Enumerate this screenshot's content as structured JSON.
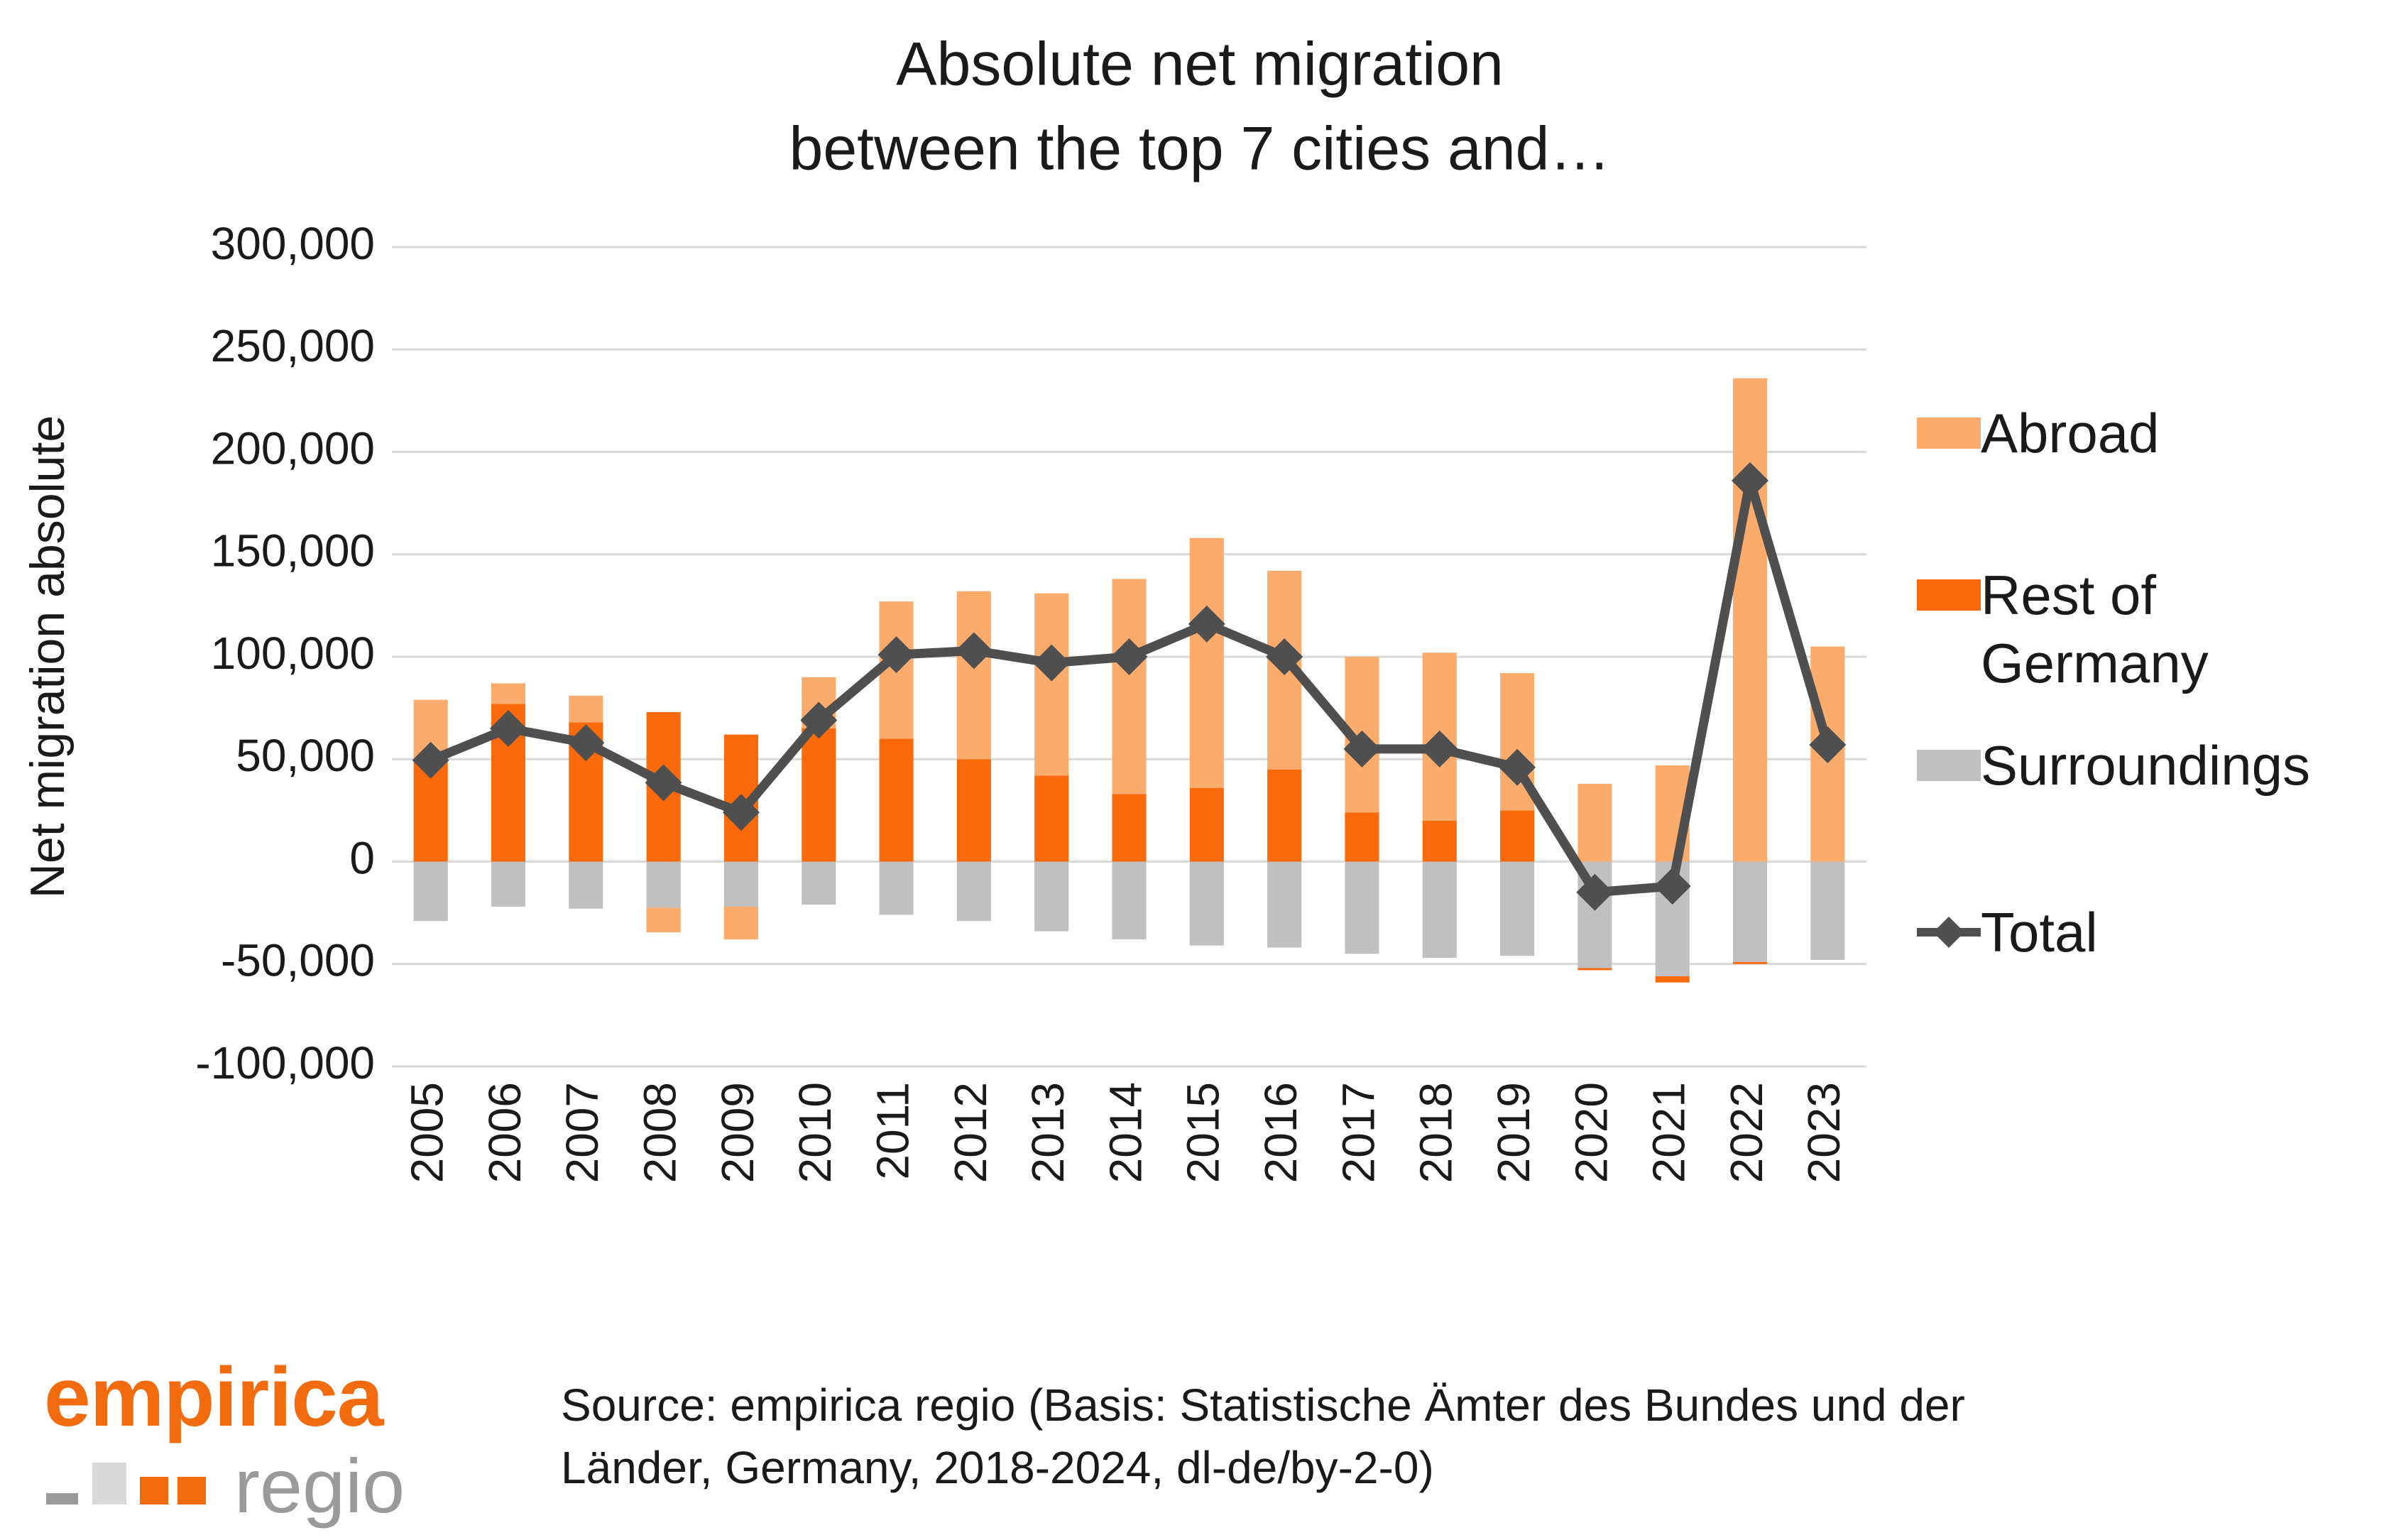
{
  "chart_data": {
    "type": "bar",
    "stacked": true,
    "title": [
      "Absolute net migration",
      "between the top 7 cities and…"
    ],
    "y_label": "Net migration absolute",
    "categories": [
      "2005",
      "2006",
      "2007",
      "2008",
      "2009",
      "2010",
      "2011",
      "2012",
      "2013",
      "2014",
      "2015",
      "2016",
      "2017",
      "2018",
      "2019",
      "2020",
      "2021",
      "2022",
      "2023"
    ],
    "series": [
      {
        "name": "Abroad",
        "color": "#fbac6c",
        "values": [
          29000,
          10000,
          13000,
          -12000,
          -16000,
          25000,
          67000,
          82000,
          89000,
          105000,
          122000,
          97000,
          76000,
          82000,
          67000,
          38000,
          47000,
          236000,
          105000
        ]
      },
      {
        "name": "Rest of Germany",
        "color": "#fa690a",
        "values": [
          50000,
          77000,
          68000,
          73000,
          62000,
          65000,
          60000,
          50000,
          42000,
          33000,
          36000,
          45000,
          24000,
          20000,
          25000,
          -1000,
          -3000,
          -1000,
          0
        ]
      },
      {
        "name": "Surroundings",
        "color": "#c0c0c0",
        "values": [
          -29000,
          -22000,
          -23000,
          -22500,
          -22000,
          -21000,
          -26000,
          -29000,
          -34000,
          -38000,
          -41000,
          -42000,
          -45000,
          -47000,
          -46000,
          -52000,
          -56000,
          -49000,
          -48000
        ]
      },
      {
        "name": "Total",
        "type": "line",
        "color": "#4f4f4f",
        "values": [
          49500,
          65000,
          58000,
          38500,
          24000,
          69000,
          101000,
          103000,
          97000,
          100000,
          116000,
          100000,
          55000,
          55000,
          46000,
          -15000,
          -12000,
          186000,
          57000
        ]
      }
    ],
    "ylim": [
      -100000,
      300000
    ],
    "yticks": [
      {
        "value": -100000,
        "label": "-100,000"
      },
      {
        "value": -50000,
        "label": "-50,000"
      },
      0,
      {
        "value": 50000,
        "label": "50,000"
      },
      {
        "value": 100000,
        "label": "100,000"
      },
      {
        "value": 150000,
        "label": "150,000"
      },
      {
        "value": 200000,
        "label": "200,000"
      },
      {
        "value": 250000,
        "label": "250,000"
      },
      {
        "value": 300000,
        "label": "300,000"
      }
    ],
    "grid": true,
    "legend": "right"
  },
  "footer": {
    "logo": [
      "empirica",
      "regio"
    ],
    "source": [
      "Source: empirica regio (Basis: Statistische Ämter des Bundes und der",
      "Länder, Germany, 2018-2024, dl-de/by-2-0)"
    ]
  }
}
